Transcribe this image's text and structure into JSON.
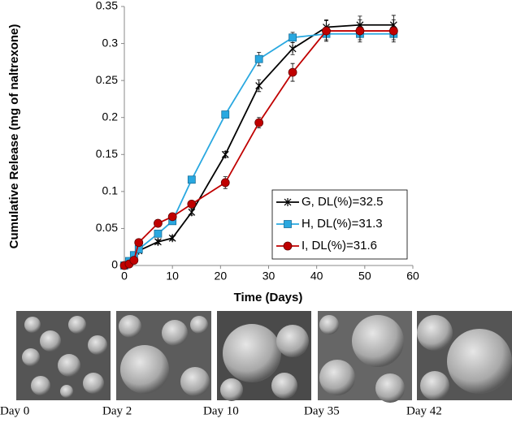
{
  "chart_data": {
    "type": "line",
    "y_label": "Cumulative Release (mg of naltrexone)",
    "x_label": "Time (Days)",
    "x": [
      0,
      1,
      2,
      3,
      7,
      10,
      14,
      21,
      28,
      35,
      42,
      49,
      56
    ],
    "series": [
      {
        "name": "G, DL(%)=32.5",
        "color": "#000000",
        "marker": "asterisk",
        "values": [
          0,
          0.003,
          0.01,
          0.02,
          0.032,
          0.037,
          0.072,
          0.15,
          0.243,
          0.293,
          0.322,
          0.325,
          0.325
        ],
        "errors": [
          0,
          0.002,
          0.003,
          0.003,
          0.003,
          0.003,
          0.004,
          0.004,
          0.008,
          0.008,
          0.01,
          0.012,
          0.013
        ]
      },
      {
        "name": "H, DL(%)=31.3",
        "color": "#29a8e0",
        "marker": "square",
        "values": [
          0,
          0.006,
          0.014,
          0.022,
          0.043,
          0.06,
          0.116,
          0.204,
          0.279,
          0.308,
          0.313,
          0.313,
          0.313
        ],
        "errors": [
          0,
          0.002,
          0.002,
          0.003,
          0.003,
          0.003,
          0.004,
          0.004,
          0.009,
          0.007,
          0.008,
          0.008,
          0.008
        ]
      },
      {
        "name": "I, DL(%)=31.6",
        "color": "#c00000",
        "marker": "circle",
        "values": [
          0,
          0.002,
          0.007,
          0.031,
          0.057,
          0.066,
          0.083,
          0.112,
          0.193,
          0.261,
          0.317,
          0.317,
          0.317
        ],
        "errors": [
          0,
          0.002,
          0.002,
          0.003,
          0.003,
          0.003,
          0.004,
          0.008,
          0.007,
          0.012,
          0.014,
          0.015,
          0.015
        ]
      }
    ],
    "xlim": [
      0,
      60
    ],
    "xticks": [
      0,
      10,
      20,
      30,
      40,
      50,
      60
    ],
    "ylim": [
      0,
      0.35
    ],
    "yticks": [
      0,
      0.05,
      0.1,
      0.15,
      0.2,
      0.25,
      0.3,
      0.35
    ],
    "grid": false,
    "legend": "lower right"
  },
  "images": [
    {
      "caption": "Day 0"
    },
    {
      "caption": "Day 2"
    },
    {
      "caption": "Day 10"
    },
    {
      "caption": "Day 35"
    },
    {
      "caption": "Day 42"
    }
  ]
}
